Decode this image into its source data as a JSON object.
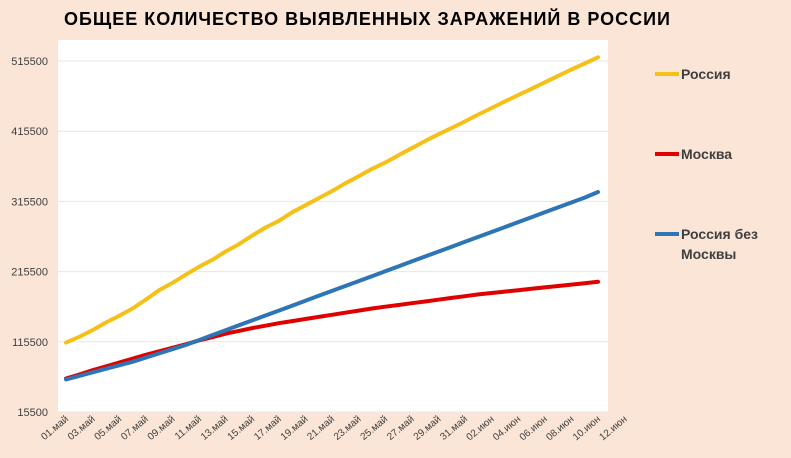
{
  "chart_data": {
    "type": "line",
    "title": "ОБЩЕЕ КОЛИЧЕСТВО ВЫЯВЛЕННЫХ ЗАРАЖЕНИЙ В РОССИИ",
    "xlabel": "",
    "ylabel": "",
    "ylim": [
      15500,
      545500
    ],
    "yticks": [
      15500,
      115500,
      215500,
      315500,
      415500,
      515500
    ],
    "ytick_labels": [
      "15500",
      "115500",
      "215500",
      "315500",
      "415500",
      "515500"
    ],
    "x_tick_labels": [
      "01.май",
      "03.май",
      "05.май",
      "07.май",
      "09.май",
      "11.май",
      "13.май",
      "15.май",
      "17.май",
      "19.май",
      "21.май",
      "23.май",
      "25.май",
      "27.май",
      "29.май",
      "31.май",
      "02.июн",
      "04.июн",
      "06.июн",
      "08.июн",
      "10.июн",
      "12.июн"
    ],
    "grid": true,
    "legend_position": "right",
    "series": [
      {
        "name": "Россия",
        "color": "#f5c017",
        "values": [
          114400,
          122700,
          132200,
          143000,
          152500,
          162900,
          175700,
          189100,
          199500,
          211100,
          222300,
          232200,
          244200,
          254600,
          266800,
          278400,
          287800,
          300000,
          310000,
          320300,
          330200,
          341400,
          351300,
          361800,
          370800,
          381300,
          391300,
          401600,
          411100,
          420200,
          429500,
          439300,
          448600,
          458000,
          467000,
          476000,
          485300,
          494400,
          503400,
          512000,
          520800
        ]
      },
      {
        "name": "Москва",
        "color": "#e00000",
        "values": [
          63200,
          68900,
          75000,
          80500,
          86000,
          91500,
          97000,
          102000,
          107000,
          112000,
          117500,
          122000,
          127000,
          131000,
          135000,
          138500,
          142000,
          145000,
          148000,
          151000,
          154000,
          157000,
          160000,
          163000,
          165500,
          168000,
          170500,
          173000,
          175500,
          178000,
          180500,
          183000,
          185000,
          187000,
          189000,
          191000,
          193000,
          195000,
          197000,
          199000,
          201000
        ]
      },
      {
        "name": "Россия без Москвы",
        "color": "#2e75b6",
        "values": [
          62000,
          67000,
          72000,
          77000,
          82000,
          87000,
          93000,
          99000,
          105000,
          111000,
          118000,
          125000,
          132000,
          139000,
          146000,
          153000,
          160000,
          167000,
          174000,
          181000,
          188000,
          195000,
          202000,
          209000,
          216000,
          223000,
          230000,
          237000,
          244000,
          251000,
          258000,
          265000,
          272000,
          279000,
          286000,
          293000,
          300000,
          307000,
          314000,
          321000,
          329000
        ]
      }
    ]
  }
}
